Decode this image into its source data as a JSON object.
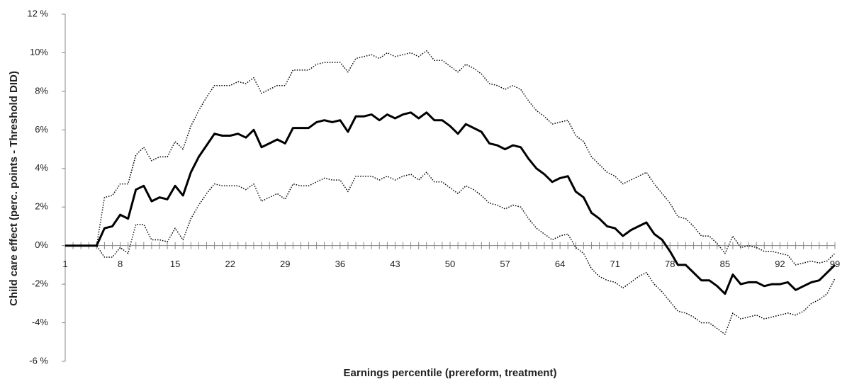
{
  "chart_data": {
    "type": "line",
    "y_label": "Child care effect (perc. points - Threshold DID)",
    "x_label": "Earnings percentile (prereform, treatment)",
    "x": [
      1,
      2,
      3,
      4,
      5,
      6,
      7,
      8,
      9,
      10,
      11,
      12,
      13,
      14,
      15,
      16,
      17,
      18,
      19,
      20,
      21,
      22,
      23,
      24,
      25,
      26,
      27,
      28,
      29,
      30,
      31,
      32,
      33,
      34,
      35,
      36,
      37,
      38,
      39,
      40,
      41,
      42,
      43,
      44,
      45,
      46,
      47,
      48,
      49,
      50,
      51,
      52,
      53,
      54,
      55,
      56,
      57,
      58,
      59,
      60,
      61,
      62,
      63,
      64,
      65,
      66,
      67,
      68,
      69,
      70,
      71,
      72,
      73,
      74,
      75,
      76,
      77,
      78,
      79,
      80,
      81,
      82,
      83,
      84,
      85,
      86,
      87,
      88,
      89,
      90,
      91,
      92,
      93,
      94,
      95,
      96,
      97,
      98,
      99
    ],
    "xlim": [
      1,
      99
    ],
    "xticks": [
      1,
      8,
      15,
      22,
      29,
      36,
      43,
      50,
      57,
      64,
      71,
      78,
      85,
      92,
      99
    ],
    "ylim": [
      -6,
      12
    ],
    "yticks": [
      {
        "value": -6,
        "label": "-6 %"
      },
      {
        "value": -4,
        "label": "-4%"
      },
      {
        "value": -2,
        "label": "-2%"
      },
      {
        "value": 0,
        "label": "0%"
      },
      {
        "value": 2,
        "label": "2%"
      },
      {
        "value": 4,
        "label": "4%"
      },
      {
        "value": 6,
        "label": "6%"
      },
      {
        "value": 8,
        "label": "8%"
      },
      {
        "value": 10,
        "label": "10%"
      },
      {
        "value": 12,
        "label": "12 %"
      }
    ],
    "series": [
      {
        "color": "#000000",
        "style": "solid",
        "values": [
          0,
          0,
          0,
          0,
          0,
          0.9,
          1.0,
          1.6,
          1.4,
          2.9,
          3.1,
          2.3,
          2.5,
          2.4,
          3.1,
          2.6,
          3.8,
          4.6,
          5.2,
          5.8,
          5.7,
          5.7,
          5.8,
          5.6,
          6.0,
          5.1,
          5.3,
          5.5,
          5.3,
          6.1,
          6.1,
          6.1,
          6.4,
          6.5,
          6.4,
          6.5,
          5.9,
          6.7,
          6.7,
          6.8,
          6.5,
          6.8,
          6.6,
          6.8,
          6.9,
          6.6,
          6.9,
          6.5,
          6.5,
          6.2,
          5.8,
          6.3,
          6.1,
          5.9,
          5.3,
          5.2,
          5.0,
          5.2,
          5.1,
          4.5,
          4.0,
          3.7,
          3.3,
          3.5,
          3.6,
          2.8,
          2.5,
          1.7,
          1.4,
          1.0,
          0.9,
          0.5,
          0.8,
          1.0,
          1.2,
          0.6,
          0.3,
          -0.3,
          -1.0,
          -1.0,
          -1.4,
          -1.8,
          -1.8,
          -2.1,
          -2.5,
          -1.5,
          -2.0,
          -1.9,
          -1.9,
          -2.1,
          -2.0,
          -2.0,
          -1.9,
          -2.3,
          -2.1,
          -1.9,
          -1.8,
          -1.4,
          -1.0
        ]
      },
      {
        "color": "#000000",
        "style": "dotted",
        "values": [
          0,
          0,
          0,
          0,
          0,
          2.5,
          2.6,
          3.2,
          3.2,
          4.7,
          5.1,
          4.4,
          4.6,
          4.6,
          5.4,
          5.0,
          6.2,
          7.0,
          7.7,
          8.3,
          8.3,
          8.3,
          8.5,
          8.4,
          8.7,
          7.9,
          8.1,
          8.3,
          8.3,
          9.1,
          9.1,
          9.1,
          9.4,
          9.5,
          9.5,
          9.5,
          9.0,
          9.7,
          9.8,
          9.9,
          9.7,
          10.0,
          9.8,
          9.9,
          10.0,
          9.8,
          10.1,
          9.6,
          9.6,
          9.3,
          9.0,
          9.4,
          9.2,
          8.9,
          8.4,
          8.3,
          8.1,
          8.3,
          8.1,
          7.5,
          7.0,
          6.7,
          6.3,
          6.4,
          6.5,
          5.7,
          5.4,
          4.6,
          4.2,
          3.8,
          3.6,
          3.2,
          3.4,
          3.6,
          3.8,
          3.2,
          2.7,
          2.2,
          1.5,
          1.4,
          1.0,
          0.5,
          0.5,
          0.1,
          -0.4,
          0.5,
          -0.1,
          0.0,
          -0.1,
          -0.3,
          -0.3,
          -0.4,
          -0.5,
          -1.0,
          -0.9,
          -0.8,
          -0.9,
          -0.8,
          -0.4
        ]
      },
      {
        "color": "#000000",
        "style": "dotted",
        "values": [
          0,
          0,
          0,
          0,
          0,
          -0.6,
          -0.6,
          -0.1,
          -0.4,
          1.1,
          1.1,
          0.3,
          0.3,
          0.2,
          0.9,
          0.3,
          1.4,
          2.1,
          2.7,
          3.2,
          3.1,
          3.1,
          3.1,
          2.9,
          3.2,
          2.3,
          2.5,
          2.7,
          2.4,
          3.2,
          3.1,
          3.1,
          3.3,
          3.5,
          3.4,
          3.4,
          2.8,
          3.6,
          3.6,
          3.6,
          3.4,
          3.6,
          3.4,
          3.6,
          3.7,
          3.4,
          3.8,
          3.3,
          3.3,
          3.0,
          2.7,
          3.1,
          2.9,
          2.6,
          2.2,
          2.1,
          1.9,
          2.1,
          2.0,
          1.4,
          0.9,
          0.6,
          0.3,
          0.5,
          0.6,
          -0.1,
          -0.4,
          -1.2,
          -1.6,
          -1.8,
          -1.9,
          -2.2,
          -1.9,
          -1.6,
          -1.4,
          -2.0,
          -2.4,
          -2.9,
          -3.4,
          -3.5,
          -3.7,
          -4.0,
          -4.0,
          -4.3,
          -4.6,
          -3.5,
          -3.8,
          -3.7,
          -3.6,
          -3.8,
          -3.7,
          -3.6,
          -3.5,
          -3.6,
          -3.4,
          -3.0,
          -2.8,
          -2.5,
          -1.7
        ]
      }
    ]
  }
}
